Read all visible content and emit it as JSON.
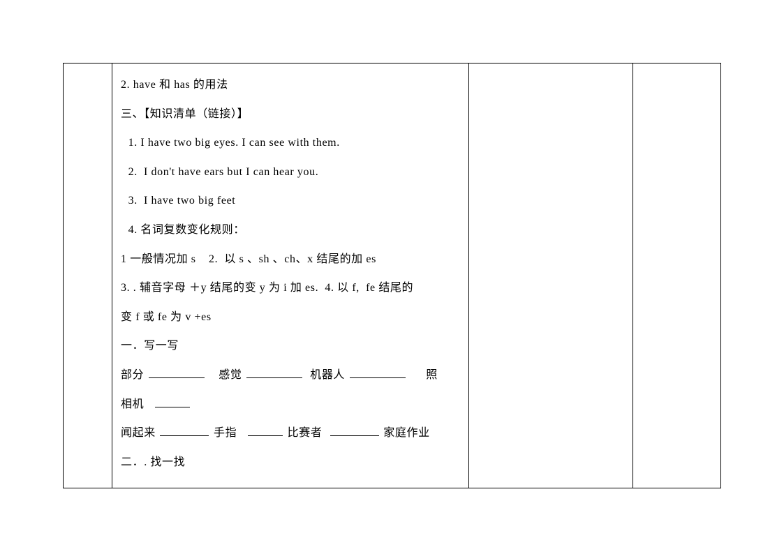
{
  "lines": {
    "l1": "2. have 和 has 的用法",
    "l2": "三、【知识清单（链接）】",
    "l3": " 1. I have two big eyes. I can see with them.",
    "l4": " 2.  I don't have ears but I can hear you.",
    "l5": " 3.  I have two big feet",
    "l6": " 4. 名词复数变化规则：",
    "l7": "1 一般情况加 s    2.  以 s 、sh 、ch、x 结尾的加 es",
    "l8": "3. . 辅音字母 ＋y 结尾的变 y 为 i 加 es.  4. 以 f,  fe 结尾的",
    "l9": "变 f 或 fe 为 v +es",
    "l10": "一．写一写",
    "l11_part": "部分",
    "l11_feel": "感觉",
    "l11_robot": "机器人",
    "l11_camera": "照",
    "l12_camera2": "相机",
    "l13_smell": "闻起来",
    "l13_finger": "手指",
    "l13_player": "比赛者",
    "l13_homework": "家庭作业",
    "l14": "二．. 找一找"
  },
  "colors": {
    "text": "#000000",
    "background": "#ffffff",
    "border": "#000000"
  },
  "typography": {
    "font_family": "SimSun",
    "font_size": 16,
    "line_height": 2.6
  }
}
